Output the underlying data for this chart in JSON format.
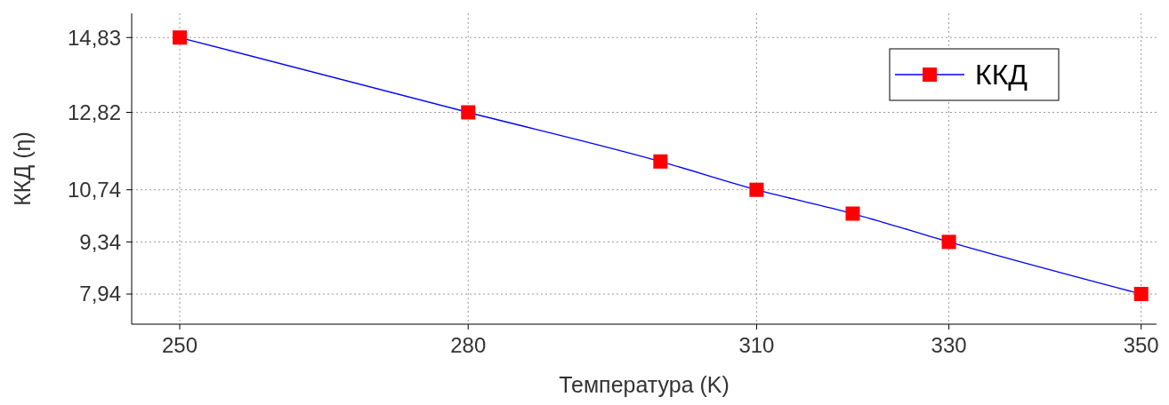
{
  "chart_data": {
    "type": "line",
    "xlabel": "Температура (K)",
    "ylabel": "ККД (η)",
    "x": [
      250,
      280,
      300,
      310,
      320,
      330,
      350
    ],
    "series": [
      {
        "name": "ККД",
        "color": "#0000ff",
        "values": [
          14.83,
          12.82,
          11.5,
          10.74,
          10.1,
          9.34,
          7.94
        ],
        "colors": [
          "#ff0000",
          "#ff0000",
          "#ff0000",
          "#ff0000",
          "#ff0000",
          "#ff0000",
          "#ff0000"
        ]
      }
    ],
    "xlim": [
      245,
      351.6
    ],
    "xticks": [
      250,
      280,
      310,
      330,
      350
    ],
    "ylim": [
      7.13,
      15.48
    ],
    "yticks": [
      {
        "value": 7.94,
        "label": "7,94"
      },
      {
        "value": 9.34,
        "label": "9,34"
      },
      {
        "value": 10.74,
        "label": "10,74"
      },
      {
        "value": 12.82,
        "label": "12,82"
      },
      {
        "value": 14.83,
        "label": "14,83"
      }
    ],
    "grid": true,
    "legend": "top right",
    "marker": "square",
    "line_style": "solid"
  }
}
